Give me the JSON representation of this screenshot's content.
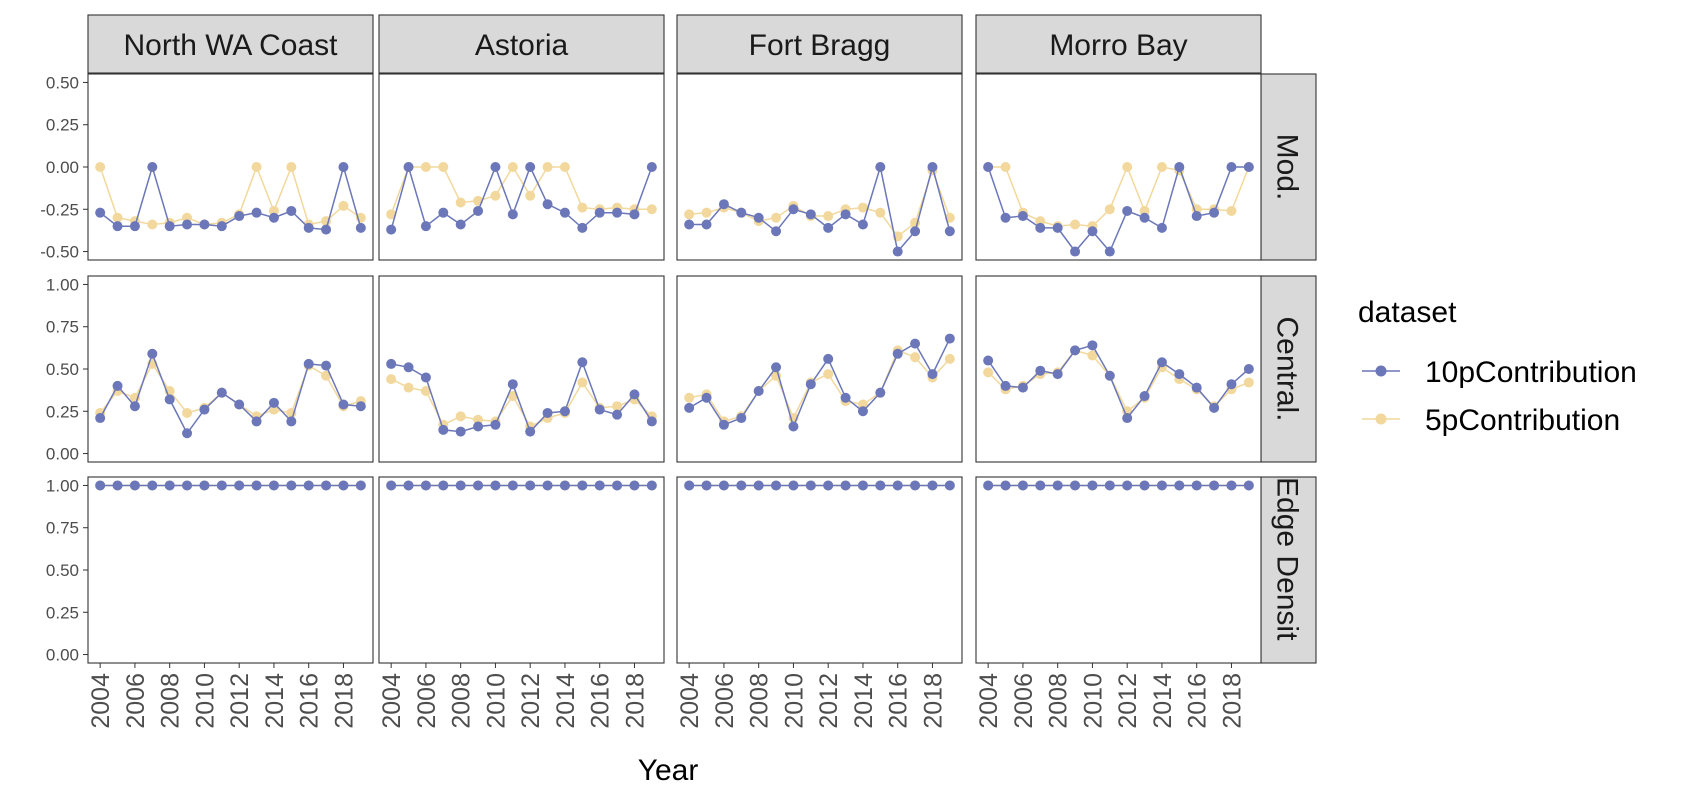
{
  "chart_data": {
    "type": "line",
    "xlabel": "Year",
    "legend": {
      "title": "dataset",
      "placement": "right"
    },
    "columns": [
      "North WA Coast",
      "Astoria",
      "Fort Bragg",
      "Morro Bay"
    ],
    "rows": [
      "Mod.",
      "Central.",
      "Edge Densit"
    ],
    "x": [
      2004,
      2005,
      2006,
      2007,
      2008,
      2009,
      2010,
      2011,
      2012,
      2013,
      2014,
      2015,
      2016,
      2017,
      2018,
      2019
    ],
    "x_ticks": [
      "2004",
      "2006",
      "2008",
      "2010",
      "2012",
      "2014",
      "2016",
      "2018"
    ],
    "row_axes": [
      {
        "ylim": [
          -0.55,
          0.55
        ],
        "ticks": [
          "0.50",
          "0.25",
          "0.00",
          "-0.25",
          "-0.50"
        ],
        "tick_values": [
          0.5,
          0.25,
          0,
          -0.25,
          -0.5
        ]
      },
      {
        "ylim": [
          -0.05,
          1.05
        ],
        "ticks": [
          "1.00",
          "0.75",
          "0.50",
          "0.25",
          "0.00"
        ],
        "tick_values": [
          1,
          0.75,
          0.5,
          0.25,
          0
        ]
      },
      {
        "ylim": [
          -0.05,
          1.05
        ],
        "ticks": [
          "1.00",
          "0.75",
          "0.50",
          "0.25",
          "0.00"
        ],
        "tick_values": [
          1,
          0.75,
          0.5,
          0.25,
          0
        ]
      }
    ],
    "series_style": [
      {
        "name": "10pContribution",
        "color": "#6b77b8"
      },
      {
        "name": "5pContribution",
        "color": "#f2d89c"
      }
    ],
    "panels": [
      [
        {
          "series": [
            {
              "name": "10pContribution",
              "values": [
                -0.27,
                -0.35,
                -0.35,
                0.0,
                -0.35,
                -0.34,
                -0.34,
                -0.35,
                -0.29,
                -0.27,
                -0.3,
                -0.26,
                -0.36,
                -0.37,
                0.0,
                -0.36
              ]
            },
            {
              "name": "5pContribution",
              "values": [
                0.0,
                -0.3,
                -0.32,
                -0.34,
                -0.33,
                -0.3,
                -0.34,
                -0.33,
                -0.28,
                0.0,
                -0.26,
                0.0,
                -0.34,
                -0.32,
                -0.23,
                -0.3
              ]
            }
          ]
        },
        {
          "series": [
            {
              "name": "10pContribution",
              "values": [
                -0.37,
                0.0,
                -0.35,
                -0.27,
                -0.34,
                -0.26,
                0.0,
                -0.28,
                0.0,
                -0.22,
                -0.27,
                -0.36,
                -0.27,
                -0.27,
                -0.28,
                0.0
              ]
            },
            {
              "name": "5pContribution",
              "values": [
                -0.28,
                0.0,
                0.0,
                0.0,
                -0.21,
                -0.2,
                -0.17,
                0.0,
                -0.17,
                0.0,
                0.0,
                -0.24,
                -0.25,
                -0.24,
                -0.25,
                -0.25
              ]
            }
          ]
        },
        {
          "series": [
            {
              "name": "10pContribution",
              "values": [
                -0.34,
                -0.34,
                -0.22,
                -0.27,
                -0.3,
                -0.38,
                -0.25,
                -0.28,
                -0.36,
                -0.28,
                -0.34,
                0.0,
                -0.5,
                -0.38,
                0.0,
                -0.38
              ]
            },
            {
              "name": "5pContribution",
              "values": [
                -0.28,
                -0.27,
                -0.24,
                -0.27,
                -0.32,
                -0.3,
                -0.23,
                -0.29,
                -0.29,
                -0.25,
                -0.24,
                -0.27,
                -0.41,
                -0.33,
                -0.02,
                -0.3
              ]
            }
          ]
        },
        {
          "series": [
            {
              "name": "10pContribution",
              "values": [
                0.0,
                -0.3,
                -0.29,
                -0.36,
                -0.36,
                -0.5,
                -0.38,
                -0.5,
                -0.26,
                -0.3,
                -0.36,
                0.0,
                -0.29,
                -0.27,
                0.0,
                0.0
              ]
            },
            {
              "name": "5pContribution",
              "values": [
                0.0,
                0.0,
                -0.27,
                -0.32,
                -0.35,
                -0.34,
                -0.35,
                -0.25,
                0.0,
                -0.26,
                0.0,
                -0.02,
                -0.25,
                -0.25,
                -0.26,
                0.0
              ]
            }
          ]
        }
      ],
      [
        {
          "series": [
            {
              "name": "10pContribution",
              "values": [
                0.21,
                0.4,
                0.28,
                0.59,
                0.32,
                0.12,
                0.26,
                0.36,
                0.29,
                0.19,
                0.3,
                0.19,
                0.53,
                0.52,
                0.29,
                0.28
              ]
            },
            {
              "name": "5pContribution",
              "values": [
                0.24,
                0.37,
                0.33,
                0.53,
                0.37,
                0.24,
                0.27,
                0.36,
                0.29,
                0.22,
                0.26,
                0.24,
                0.52,
                0.46,
                0.28,
                0.31
              ]
            }
          ]
        },
        {
          "series": [
            {
              "name": "10pContribution",
              "values": [
                0.53,
                0.51,
                0.45,
                0.14,
                0.13,
                0.16,
                0.17,
                0.41,
                0.13,
                0.24,
                0.25,
                0.54,
                0.26,
                0.23,
                0.35,
                0.19
              ]
            },
            {
              "name": "5pContribution",
              "values": [
                0.44,
                0.39,
                0.37,
                0.17,
                0.22,
                0.2,
                0.19,
                0.34,
                0.16,
                0.21,
                0.24,
                0.42,
                0.27,
                0.28,
                0.32,
                0.22
              ]
            }
          ]
        },
        {
          "series": [
            {
              "name": "10pContribution",
              "values": [
                0.27,
                0.33,
                0.17,
                0.21,
                0.37,
                0.51,
                0.16,
                0.41,
                0.56,
                0.33,
                0.25,
                0.36,
                0.59,
                0.65,
                0.47,
                0.68
              ]
            },
            {
              "name": "5pContribution",
              "values": [
                0.33,
                0.35,
                0.19,
                0.22,
                0.37,
                0.46,
                0.21,
                0.42,
                0.47,
                0.31,
                0.29,
                0.36,
                0.61,
                0.57,
                0.45,
                0.56
              ]
            }
          ]
        },
        {
          "series": [
            {
              "name": "10pContribution",
              "values": [
                0.55,
                0.4,
                0.39,
                0.49,
                0.47,
                0.61,
                0.64,
                0.46,
                0.21,
                0.34,
                0.54,
                0.47,
                0.39,
                0.27,
                0.41,
                0.5
              ]
            },
            {
              "name": "5pContribution",
              "values": [
                0.48,
                0.38,
                0.4,
                0.47,
                0.48,
                0.61,
                0.58,
                0.46,
                0.25,
                0.33,
                0.51,
                0.44,
                0.38,
                0.28,
                0.38,
                0.42
              ]
            }
          ]
        }
      ],
      [
        {
          "series": [
            {
              "name": "10pContribution",
              "values": [
                1,
                1,
                1,
                1,
                1,
                1,
                1,
                1,
                1,
                1,
                1,
                1,
                1,
                1,
                1,
                1
              ]
            },
            {
              "name": "5pContribution",
              "values": [
                1,
                1,
                1,
                1,
                1,
                1,
                1,
                1,
                1,
                1,
                1,
                1,
                1,
                1,
                1,
                1
              ]
            }
          ]
        },
        {
          "series": [
            {
              "name": "10pContribution",
              "values": [
                1,
                1,
                1,
                1,
                1,
                1,
                1,
                1,
                1,
                1,
                1,
                1,
                1,
                1,
                1,
                1
              ]
            },
            {
              "name": "5pContribution",
              "values": [
                1,
                1,
                1,
                1,
                1,
                1,
                1,
                1,
                1,
                1,
                1,
                1,
                1,
                1,
                1,
                1
              ]
            }
          ]
        },
        {
          "series": [
            {
              "name": "10pContribution",
              "values": [
                1,
                1,
                1,
                1,
                1,
                1,
                1,
                1,
                1,
                1,
                1,
                1,
                1,
                1,
                1,
                1
              ]
            },
            {
              "name": "5pContribution",
              "values": [
                1,
                1,
                1,
                1,
                1,
                1,
                1,
                1,
                1,
                1,
                1,
                1,
                1,
                1,
                1,
                1
              ]
            }
          ]
        },
        {
          "series": [
            {
              "name": "10pContribution",
              "values": [
                1,
                1,
                1,
                1,
                1,
                1,
                1,
                1,
                1,
                1,
                1,
                1,
                1,
                1,
                1,
                1
              ]
            },
            {
              "name": "5pContribution",
              "values": [
                1,
                1,
                1,
                1,
                1,
                1,
                1,
                1,
                1,
                1,
                1,
                1,
                1,
                1,
                1,
                1
              ]
            }
          ]
        }
      ]
    ],
    "grid": false
  }
}
